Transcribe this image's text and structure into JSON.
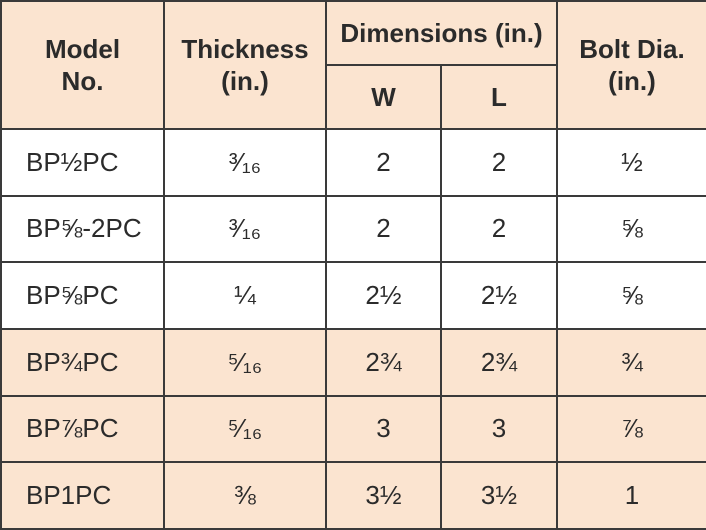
{
  "header": {
    "model": "Model\nNo.",
    "thickness": "Thickness\n(in.)",
    "dimensions": "Dimensions (in.)",
    "w": "W",
    "l": "L",
    "bolt": "Bolt Dia.\n(in.)"
  },
  "table": {
    "rows": [
      [
        "BP½PC",
        "³⁄₁₆",
        "2",
        "2",
        "½"
      ],
      [
        "BP⅝-2PC",
        "³⁄₁₆",
        "2",
        "2",
        "⅝"
      ],
      [
        "BP⅝PC",
        "¼",
        "2½",
        "2½",
        "⅝"
      ],
      [
        "BP¾PC",
        "⁵⁄₁₆",
        "2¾",
        "2¾",
        "¾"
      ],
      [
        "BP⅞PC",
        "⁵⁄₁₆",
        "3",
        "3",
        "⅞"
      ],
      [
        "BP1PC",
        "⅜",
        "3½",
        "3½",
        "1"
      ]
    ]
  }
}
